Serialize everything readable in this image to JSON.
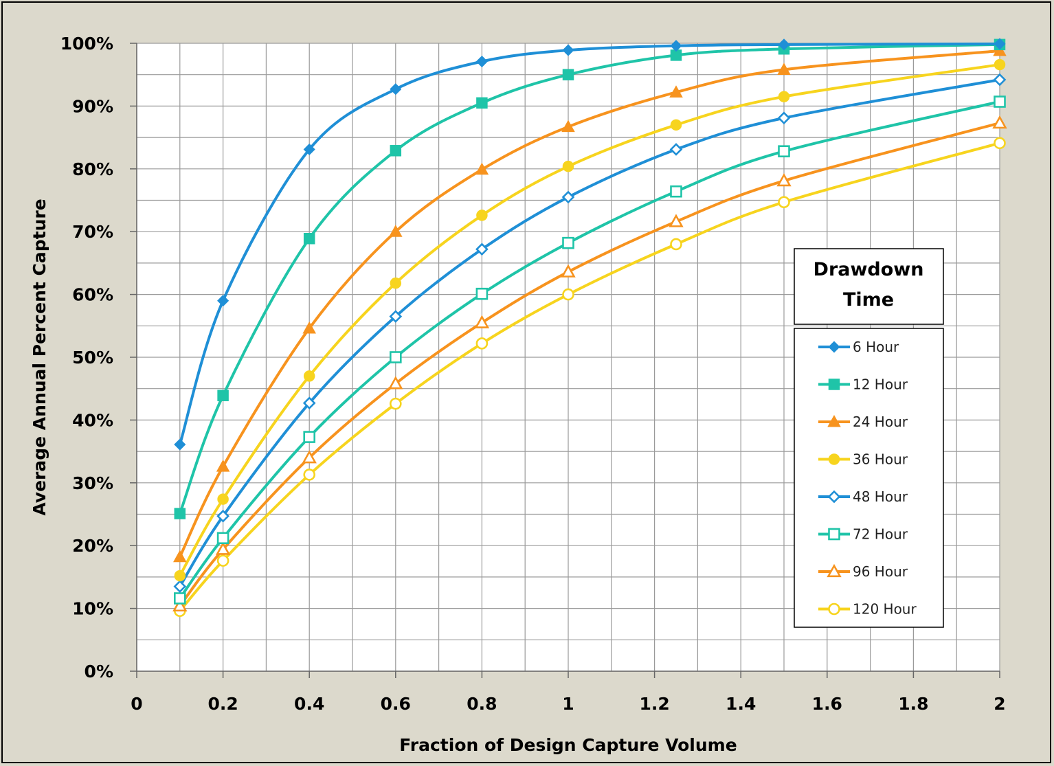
{
  "chart_data": {
    "type": "line",
    "xlabel": "Fraction of Design Capture Volume",
    "ylabel": "Average Annual Percent Capture",
    "xlim": [
      0,
      2
    ],
    "ylim": [
      0,
      100
    ],
    "x_ticks": [
      "0",
      "0.2",
      "0.4",
      "0.6",
      "0.8",
      "1",
      "1.2",
      "1.4",
      "1.6",
      "1.8",
      "2"
    ],
    "y_ticks": [
      "0%",
      "10%",
      "20%",
      "30%",
      "40%",
      "50%",
      "60%",
      "70%",
      "80%",
      "90%",
      "100%"
    ],
    "grid": true,
    "legend": {
      "title_line1": "Drawdown",
      "title_line2": "Time",
      "placement": "right"
    },
    "x": [
      0.1,
      0.2,
      0.4,
      0.6,
      0.8,
      1.0,
      1.25,
      1.5,
      2.0
    ],
    "series": [
      {
        "name": "6 Hour",
        "color": "#1f8fd6",
        "marker": "diamond",
        "values": [
          36.1,
          59.0,
          83.1,
          92.7,
          97.1,
          98.9,
          99.6,
          99.8,
          99.9
        ]
      },
      {
        "name": "12 Hour",
        "color": "#1fc4a8",
        "marker": "square",
        "values": [
          25.1,
          43.9,
          68.9,
          82.9,
          90.5,
          95.0,
          98.1,
          99.1,
          99.8
        ]
      },
      {
        "name": "24 Hour",
        "color": "#f7931e",
        "marker": "triangle",
        "values": [
          18.2,
          32.6,
          54.6,
          70.0,
          79.9,
          86.7,
          92.2,
          95.8,
          98.8
        ]
      },
      {
        "name": "36 Hour",
        "color": "#f7d41e",
        "marker": "circle",
        "values": [
          15.2,
          27.4,
          47.0,
          61.8,
          72.6,
          80.4,
          87.0,
          91.5,
          96.6
        ]
      },
      {
        "name": "48 Hour",
        "color": "#1f8fd6",
        "marker": "diamond-open",
        "values": [
          13.5,
          24.7,
          42.7,
          56.5,
          67.2,
          75.5,
          83.1,
          88.1,
          94.2
        ]
      },
      {
        "name": "72 Hour",
        "color": "#1fc4a8",
        "marker": "square-open",
        "values": [
          11.6,
          21.2,
          37.3,
          50.0,
          60.1,
          68.2,
          76.4,
          82.8,
          90.7
        ]
      },
      {
        "name": "96 Hour",
        "color": "#f7931e",
        "marker": "triangle-open",
        "values": [
          10.4,
          19.4,
          34.0,
          45.8,
          55.5,
          63.6,
          71.6,
          78.1,
          87.3
        ]
      },
      {
        "name": "120 Hour",
        "color": "#f7d41e",
        "marker": "circle-open",
        "values": [
          9.6,
          17.6,
          31.3,
          42.6,
          52.2,
          60.0,
          68.0,
          74.7,
          84.1
        ]
      }
    ]
  }
}
